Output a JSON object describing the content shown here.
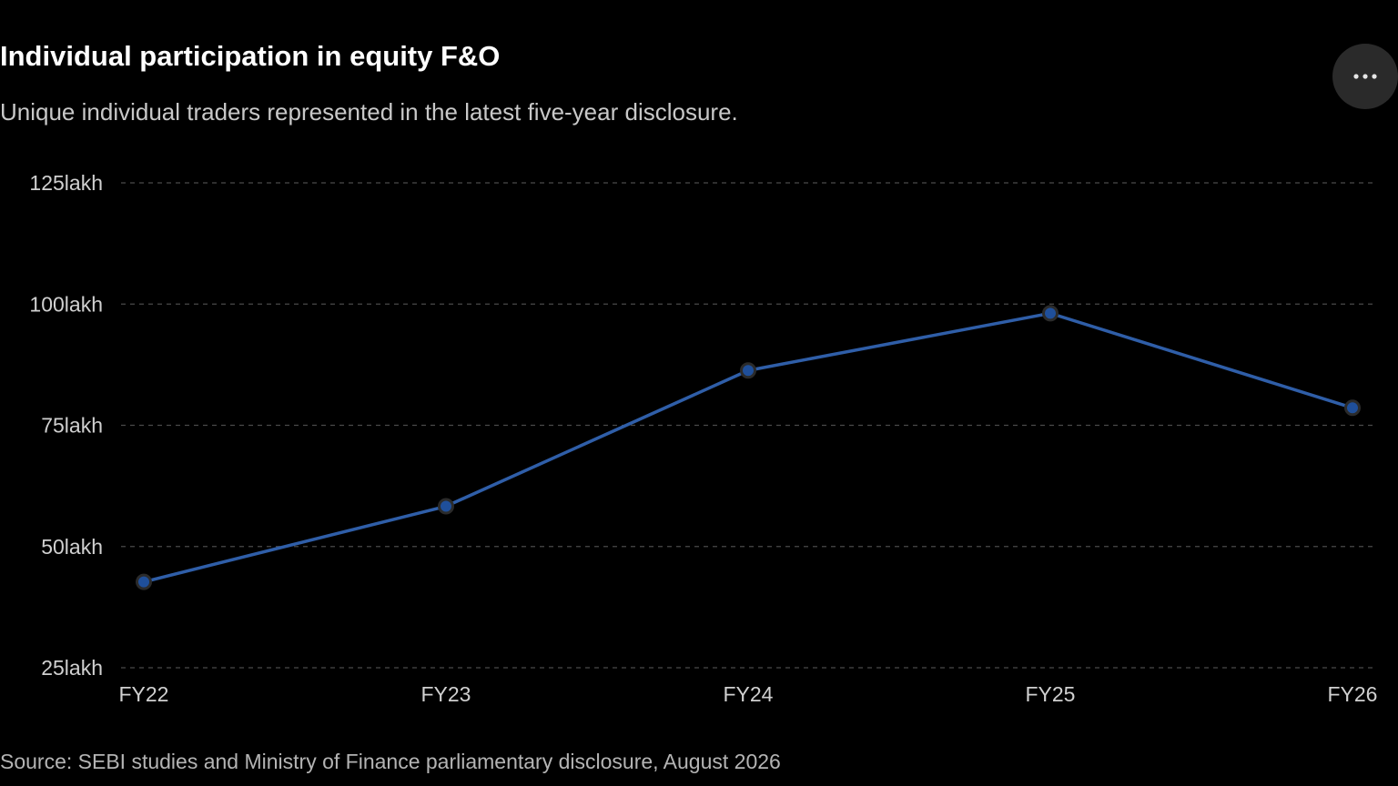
{
  "header": {
    "title": "Individual participation in equity F&O",
    "subtitle": "Unique individual traders represented in the latest five-year disclosure."
  },
  "toolbar": {
    "more_icon": "more-horizontal-icon"
  },
  "footer": {
    "source": "Source: SEBI studies and Ministry of Finance parliamentary disclosure, August 2026"
  },
  "colors": {
    "background": "#000000",
    "line": "#2f5ea8",
    "marker_fill": "#1f4f9a",
    "marker_stroke": "#2b2b2b",
    "grid": "#4a4a4a"
  },
  "chart_data": {
    "type": "line",
    "title": "Individual participation in equity F&O",
    "xlabel": "",
    "ylabel": "",
    "categories": [
      "FY22",
      "FY23",
      "FY24",
      "FY25",
      "FY26"
    ],
    "series": [
      {
        "values": [
          42.7,
          58.3,
          86.3,
          98.1,
          78.6
        ]
      }
    ],
    "ylim": [
      25,
      125
    ],
    "yticks": [
      25,
      50,
      75,
      100,
      125
    ],
    "ytick_labels": [
      "25lakh",
      "50lakh",
      "75lakh",
      "100lakh",
      "125lakh"
    ],
    "grid": "horizontal dashed",
    "legend": "none"
  }
}
